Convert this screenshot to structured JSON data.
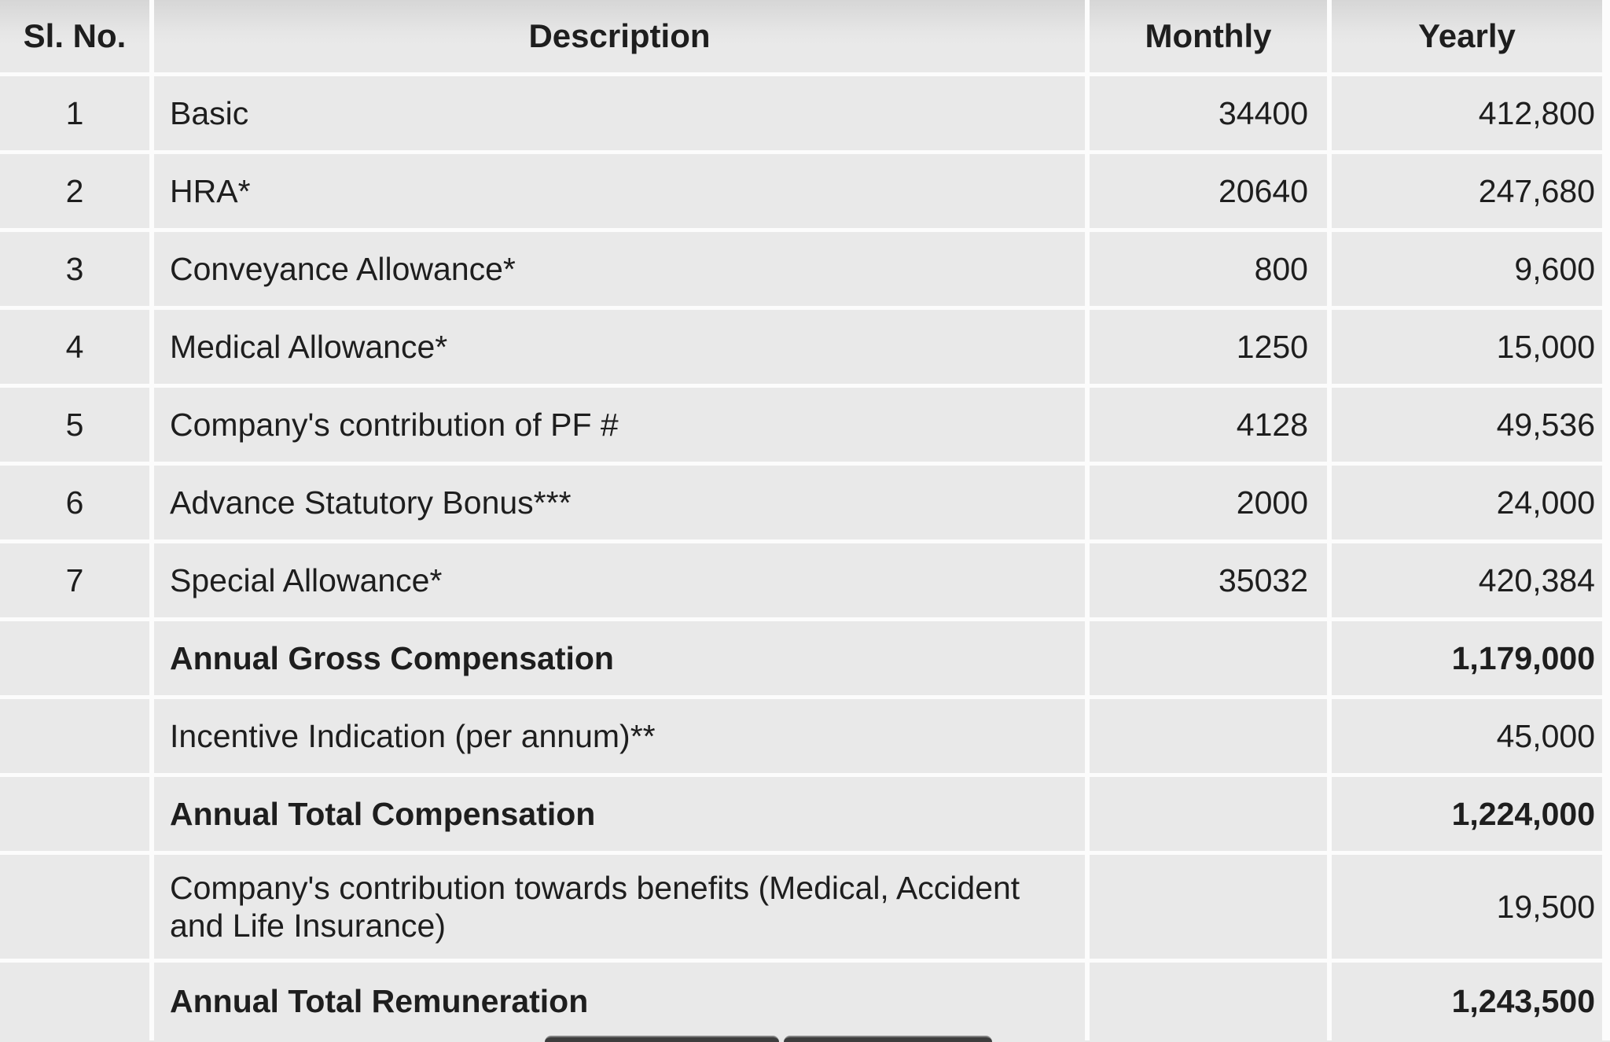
{
  "table": {
    "columns": [
      {
        "key": "sl",
        "label": "Sl. No."
      },
      {
        "key": "description",
        "label": "Description"
      },
      {
        "key": "monthly",
        "label": "Monthly"
      },
      {
        "key": "yearly",
        "label": "Yearly"
      }
    ],
    "rows": [
      {
        "sl": "1",
        "description": "Basic",
        "monthly": "34400",
        "yearly": "412,800",
        "bold": false,
        "tall": false
      },
      {
        "sl": "2",
        "description": "HRA*",
        "monthly": "20640",
        "yearly": "247,680",
        "bold": false,
        "tall": false
      },
      {
        "sl": "3",
        "description": "Conveyance Allowance*",
        "monthly": "800",
        "yearly": "9,600",
        "bold": false,
        "tall": false
      },
      {
        "sl": "4",
        "description": "Medical Allowance*",
        "monthly": "1250",
        "yearly": "15,000",
        "bold": false,
        "tall": false
      },
      {
        "sl": "5",
        "description": "Company's contribution of PF #",
        "monthly": "4128",
        "yearly": "49,536",
        "bold": false,
        "tall": false
      },
      {
        "sl": "6",
        "description": "Advance Statutory Bonus***",
        "monthly": "2000",
        "yearly": "24,000",
        "bold": false,
        "tall": false
      },
      {
        "sl": "7",
        "description": "Special Allowance*",
        "monthly": "35032",
        "yearly": "420,384",
        "bold": false,
        "tall": false
      },
      {
        "sl": "",
        "description": "Annual Gross Compensation",
        "monthly": "",
        "yearly": "1,179,000",
        "bold": true,
        "tall": false
      },
      {
        "sl": "",
        "description": "Incentive Indication (per annum)**",
        "monthly": "",
        "yearly": "45,000",
        "bold": false,
        "tall": false
      },
      {
        "sl": "",
        "description": "Annual Total Compensation",
        "monthly": "",
        "yearly": "1,224,000",
        "bold": true,
        "tall": false
      },
      {
        "sl": "",
        "description": "Company's contribution towards benefits (Medical, Accident and Life Insurance)",
        "monthly": "",
        "yearly": "19,500",
        "bold": false,
        "tall": true
      },
      {
        "sl": "",
        "description": "Annual Total Remuneration",
        "monthly": "",
        "yearly": "1,243,500",
        "bold": true,
        "tall": false
      }
    ]
  },
  "colors": {
    "cell_background": "#e9e9e9",
    "grid_separator": "#fcfcfc",
    "header_gradient_top": "#d6d6d6",
    "header_gradient_bottom": "#e9e9e9",
    "text": "#1e1e1e",
    "bottom_button": "#3d3d3d",
    "bottom_button_highlight": "#7f7f7f"
  },
  "bottom_bar": {
    "button_count": 2,
    "note": "two dark buttons partially visible at bottom edge"
  }
}
